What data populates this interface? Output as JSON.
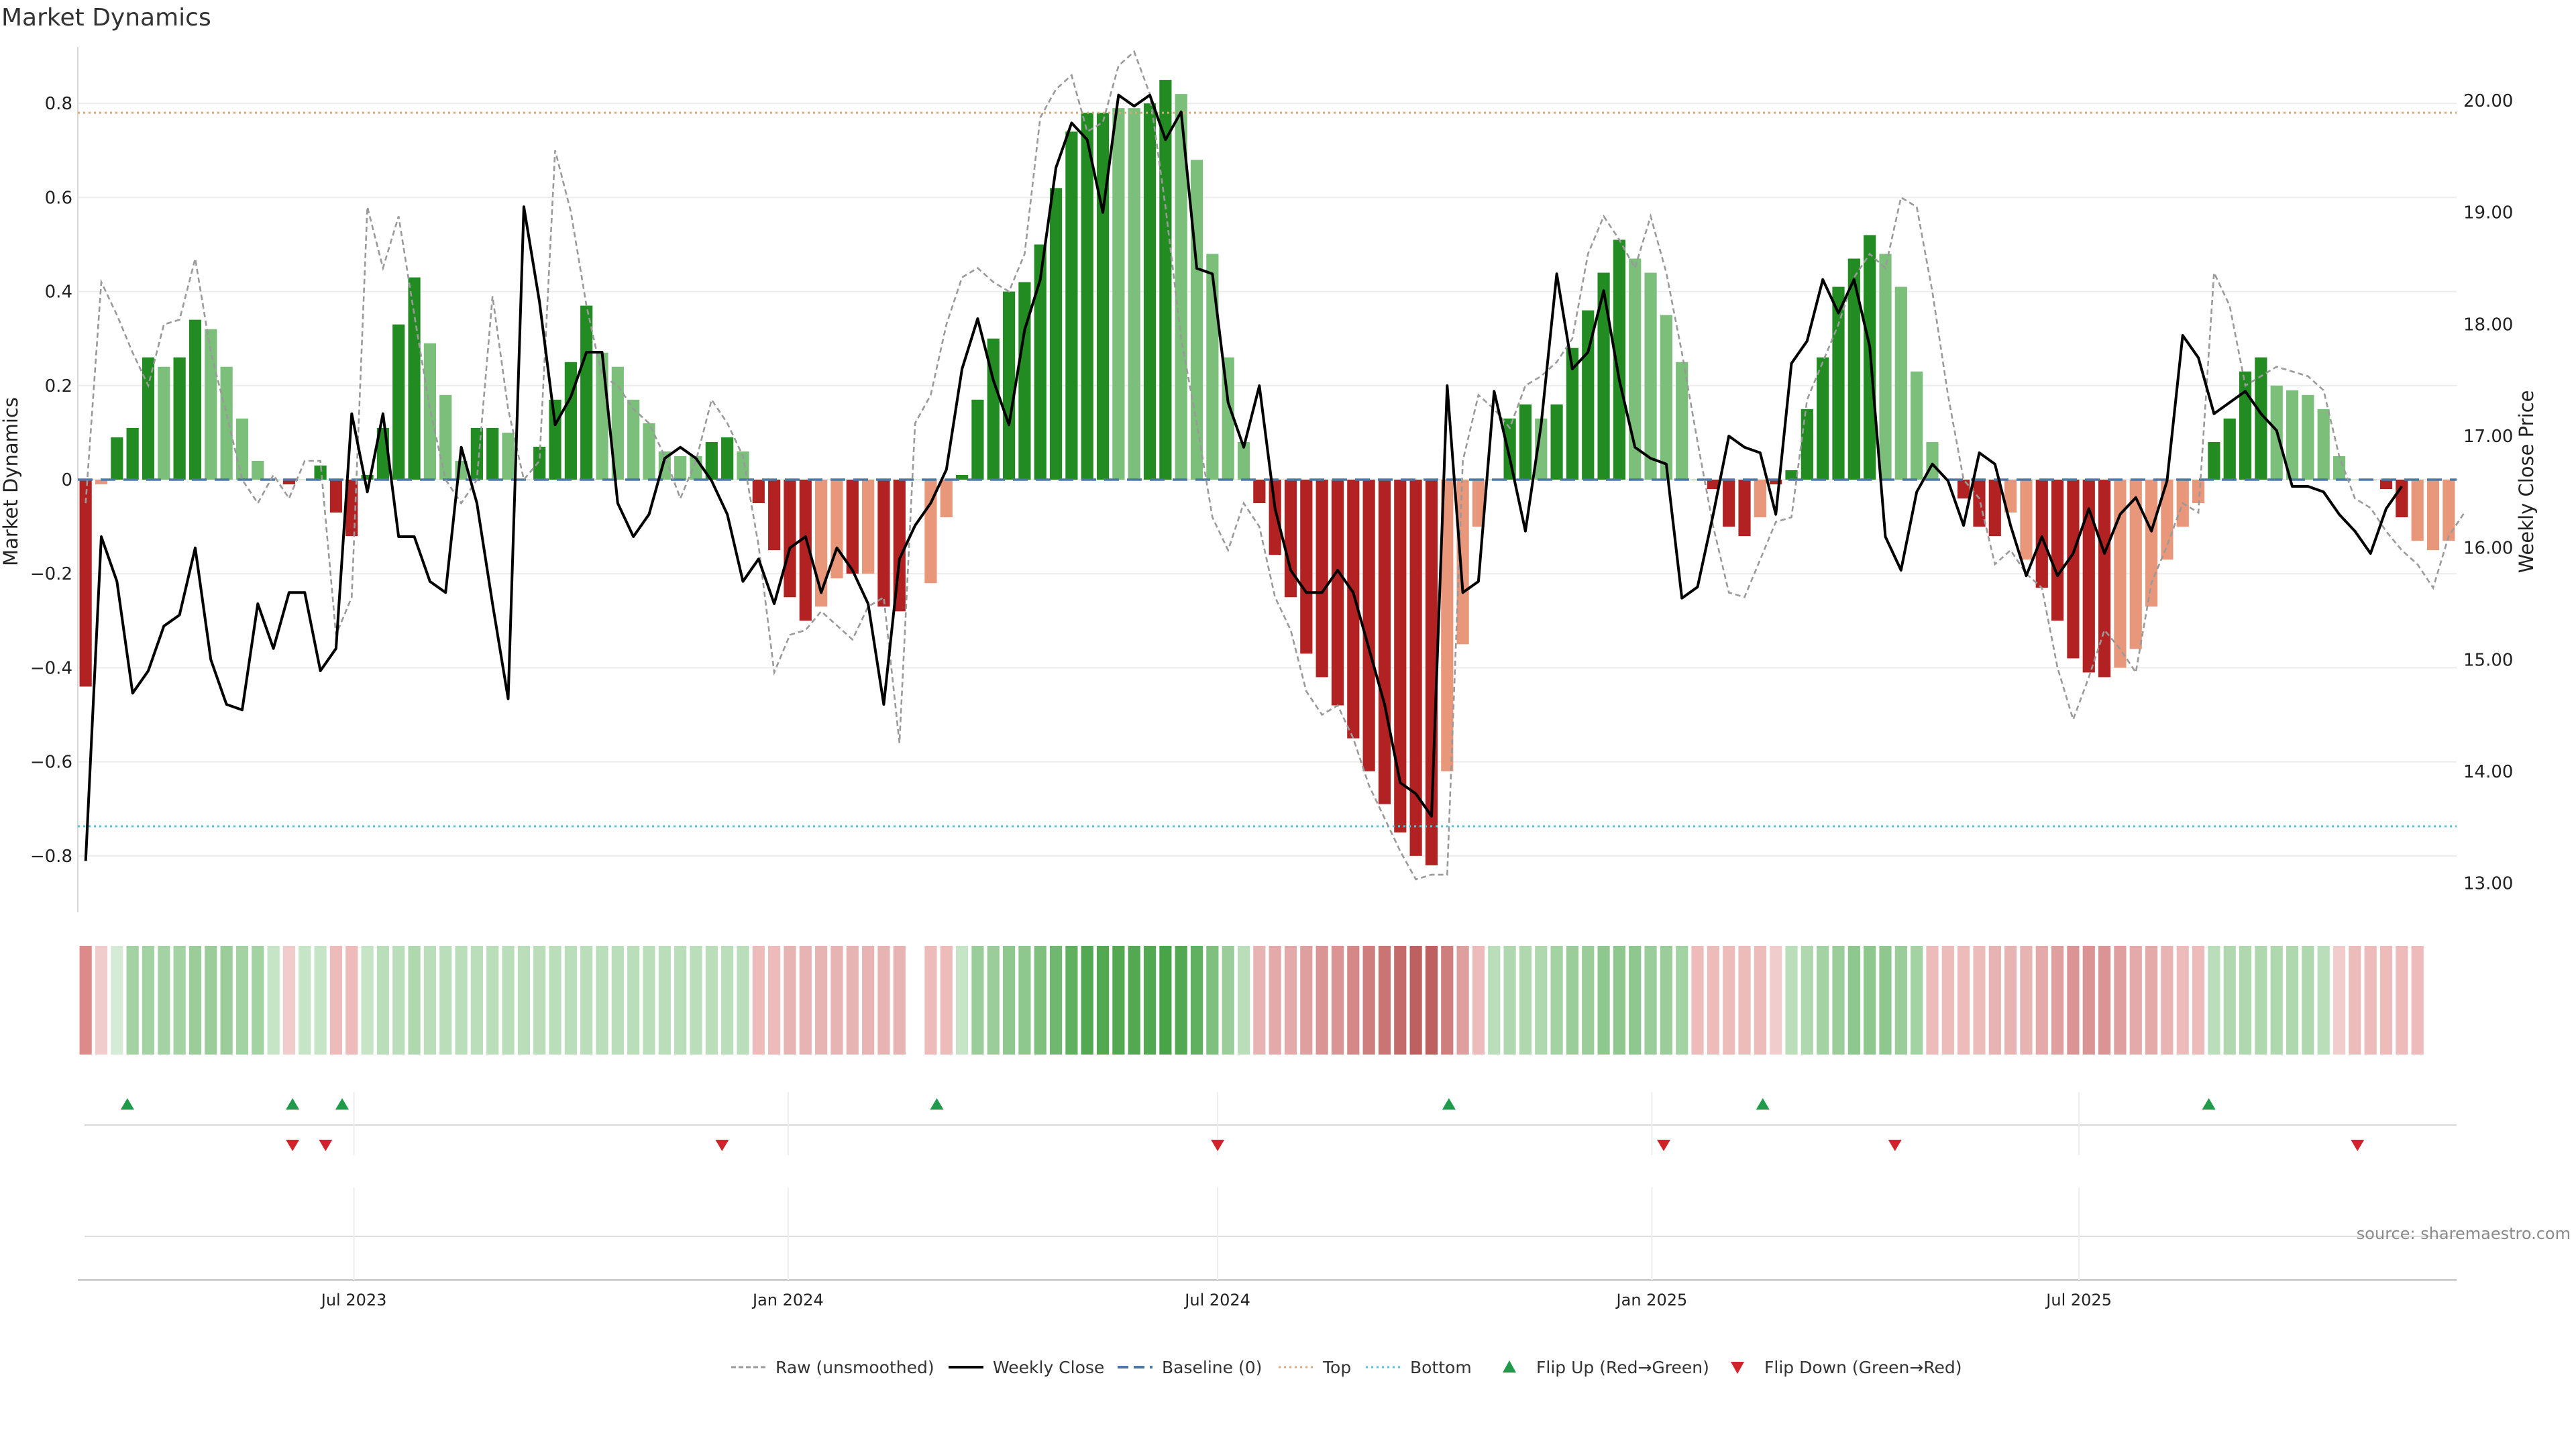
{
  "title": "Market Dynamics",
  "source": "source: sharemaestro.com",
  "colors": {
    "strong_green": "#228b22",
    "light_green": "#7bbf7b",
    "strong_red": "#b22222",
    "light_red": "#e8977a",
    "raw_line": "#9a9a9a",
    "close_line": "#000000",
    "baseline": "#4a78a8",
    "top_line": "#d9a87a",
    "bottom_line": "#55c1e0",
    "flip_up": "#1f9a4a",
    "flip_down": "#d0242a"
  },
  "chart_data": {
    "type": "bar",
    "title": "Market Dynamics",
    "ylabel": "Market Dynamics",
    "y2label": "Weekly Close Price",
    "ylim": [
      -0.92,
      0.92
    ],
    "y2lim": [
      12.74,
      20.48
    ],
    "yticks": [
      "0.8",
      "0.6",
      "0.4",
      "0.2",
      "0",
      "−0.2",
      "−0.4",
      "−0.6",
      "−0.8"
    ],
    "yticks_values": [
      0.8,
      0.6,
      0.4,
      0.2,
      0,
      -0.2,
      -0.4,
      -0.6,
      -0.8
    ],
    "y2ticks": [
      "20.00",
      "19.00",
      "18.00",
      "17.00",
      "16.00",
      "15.00",
      "14.00",
      "13.00"
    ],
    "y2ticks_values": [
      20,
      19,
      18,
      17,
      16,
      15,
      14,
      13
    ],
    "x_range": [
      "2023-03-06",
      "2025-12-08"
    ],
    "xticks": [
      {
        "date": "2023-07-01",
        "label": "Jul 2023"
      },
      {
        "date": "2024-01-01",
        "label": "Jan 2024"
      },
      {
        "date": "2024-07-01",
        "label": "Jul 2024"
      },
      {
        "date": "2025-01-01",
        "label": "Jan 2025"
      },
      {
        "date": "2025-07-01",
        "label": "Jul 2025"
      }
    ],
    "start_date": "2023-03-06",
    "bar_values": [
      -0.44,
      -0.01,
      0.09,
      0.11,
      0.26,
      0.24,
      0.26,
      0.34,
      0.32,
      0.24,
      0.13,
      0.04,
      0.0,
      -0.01,
      0.0,
      0.03,
      -0.07,
      -0.12,
      0.01,
      0.11,
      0.33,
      0.43,
      0.29,
      0.18,
      0.04,
      0.11,
      0.11,
      0.1,
      0.0,
      0.07,
      0.17,
      0.25,
      0.37,
      0.27,
      0.24,
      0.17,
      0.12,
      0.06,
      0.05,
      0.05,
      0.08,
      0.09,
      0.06,
      -0.05,
      -0.15,
      -0.25,
      -0.3,
      -0.27,
      -0.21,
      -0.2,
      -0.2,
      -0.27,
      -0.28,
      0.0,
      -0.22,
      -0.08,
      0.01,
      0.17,
      0.3,
      0.4,
      0.42,
      0.5,
      0.62,
      0.74,
      0.78,
      0.78,
      0.79,
      0.79,
      0.8,
      0.85,
      0.82,
      0.68,
      0.48,
      0.26,
      0.08,
      -0.05,
      -0.16,
      -0.25,
      -0.37,
      -0.42,
      -0.48,
      -0.55,
      -0.62,
      -0.69,
      -0.75,
      -0.8,
      -0.82,
      -0.62,
      -0.35,
      -0.1,
      0.0,
      0.13,
      0.16,
      0.13,
      0.16,
      0.28,
      0.36,
      0.44,
      0.51,
      0.47,
      0.44,
      0.35,
      0.25,
      0.0,
      -0.02,
      -0.1,
      -0.12,
      -0.08,
      -0.01,
      0.02,
      0.15,
      0.26,
      0.41,
      0.47,
      0.52,
      0.48,
      0.41,
      0.23,
      0.08,
      0.0,
      -0.04,
      -0.1,
      -0.12,
      -0.07,
      -0.17,
      -0.23,
      -0.3,
      -0.38,
      -0.41,
      -0.42,
      -0.4,
      -0.36,
      -0.27,
      -0.17,
      -0.1,
      -0.05,
      0.08,
      0.13,
      0.23,
      0.26,
      0.2,
      0.19,
      0.18,
      0.15,
      0.05,
      0.0,
      0.0,
      -0.02,
      -0.08,
      -0.13,
      -0.15,
      -0.13
    ],
    "bar_intensity": [
      "s",
      "l",
      "s",
      "s",
      "s",
      "l",
      "s",
      "s",
      "l",
      "l",
      "l",
      "l",
      "l",
      "s",
      "l",
      "s",
      "s",
      "s",
      "s",
      "s",
      "s",
      "s",
      "l",
      "l",
      "l",
      "s",
      "s",
      "l",
      "l",
      "s",
      "s",
      "s",
      "s",
      "l",
      "l",
      "l",
      "l",
      "l",
      "l",
      "l",
      "s",
      "s",
      "l",
      "s",
      "s",
      "s",
      "s",
      "l",
      "l",
      "s",
      "l",
      "s",
      "s",
      "l",
      "l",
      "l",
      "s",
      "s",
      "s",
      "s",
      "s",
      "s",
      "s",
      "s",
      "s",
      "s",
      "l",
      "l",
      "s",
      "s",
      "l",
      "l",
      "l",
      "l",
      "l",
      "s",
      "s",
      "s",
      "s",
      "s",
      "s",
      "s",
      "s",
      "s",
      "s",
      "s",
      "s",
      "l",
      "l",
      "l",
      "s",
      "s",
      "s",
      "l",
      "s",
      "s",
      "s",
      "s",
      "s",
      "l",
      "l",
      "l",
      "l",
      "s",
      "s",
      "s",
      "s",
      "l",
      "s",
      "s",
      "s",
      "s",
      "s",
      "s",
      "s",
      "l",
      "l",
      "l",
      "l",
      "l",
      "s",
      "s",
      "s",
      "l",
      "l",
      "s",
      "s",
      "s",
      "s",
      "s",
      "l",
      "l",
      "l",
      "l",
      "l",
      "l",
      "s",
      "s",
      "s",
      "s",
      "l",
      "l",
      "l",
      "l",
      "l",
      "l",
      "s",
      "s",
      "s",
      "l"
    ],
    "raw_values": [
      -0.05,
      0.42,
      0.35,
      0.27,
      0.2,
      0.33,
      0.34,
      0.47,
      0.27,
      0.14,
      0.0,
      -0.05,
      0.01,
      -0.04,
      0.04,
      0.04,
      -0.33,
      -0.25,
      0.58,
      0.45,
      0.56,
      0.35,
      0.15,
      0.0,
      -0.05,
      0.0,
      0.39,
      0.15,
      0.0,
      0.04,
      0.7,
      0.57,
      0.37,
      0.22,
      0.2,
      0.15,
      0.12,
      0.05,
      -0.04,
      0.04,
      0.17,
      0.12,
      0.05,
      -0.14,
      -0.41,
      -0.33,
      -0.32,
      -0.28,
      -0.31,
      -0.34,
      -0.27,
      -0.25,
      -0.56,
      0.12,
      0.18,
      0.33,
      0.43,
      0.45,
      0.42,
      0.4,
      0.48,
      0.77,
      0.83,
      0.86,
      0.74,
      0.76,
      0.88,
      0.91,
      0.82,
      0.58,
      0.3,
      0.12,
      -0.08,
      -0.15,
      -0.05,
      -0.1,
      -0.25,
      -0.32,
      -0.45,
      -0.5,
      -0.48,
      -0.55,
      -0.65,
      -0.72,
      -0.79,
      -0.85,
      -0.84,
      -0.84,
      0.04,
      0.18,
      0.15,
      0.11,
      0.2,
      0.22,
      0.25,
      0.3,
      0.48,
      0.56,
      0.51,
      0.45,
      0.56,
      0.44,
      0.27,
      0.08,
      -0.1,
      -0.24,
      -0.25,
      -0.17,
      -0.09,
      -0.08,
      0.17,
      0.25,
      0.33,
      0.43,
      0.48,
      0.45,
      0.6,
      0.58,
      0.4,
      0.18,
      0.0,
      -0.04,
      -0.18,
      -0.15,
      -0.2,
      -0.23,
      -0.4,
      -0.51,
      -0.42,
      -0.32,
      -0.36,
      -0.41,
      -0.22,
      -0.14,
      -0.05,
      -0.07,
      0.44,
      0.37,
      0.2,
      0.22,
      0.24,
      0.23,
      0.22,
      0.19,
      0.05,
      -0.04,
      -0.06,
      -0.11,
      -0.15,
      -0.18,
      -0.23,
      -0.12,
      -0.07
    ],
    "close_values": [
      13.2,
      16.1,
      15.7,
      14.7,
      14.9,
      15.3,
      15.4,
      16.0,
      15.0,
      14.6,
      14.55,
      15.5,
      15.1,
      15.6,
      15.6,
      14.9,
      15.1,
      17.2,
      16.5,
      17.2,
      16.1,
      16.1,
      15.7,
      15.6,
      16.9,
      16.4,
      15.5,
      14.65,
      19.05,
      18.2,
      17.1,
      17.35,
      17.75,
      17.75,
      16.4,
      16.1,
      16.3,
      16.8,
      16.9,
      16.8,
      16.6,
      16.3,
      15.7,
      15.9,
      15.5,
      16.0,
      16.1,
      15.6,
      16.0,
      15.8,
      15.5,
      14.6,
      15.9,
      16.2,
      16.4,
      16.7,
      17.6,
      18.05,
      17.5,
      17.1,
      17.95,
      18.4,
      19.4,
      19.8,
      19.65,
      19.0,
      20.05,
      19.95,
      20.05,
      19.65,
      19.9,
      18.5,
      18.45,
      17.3,
      16.9,
      17.45,
      16.35,
      15.8,
      15.6,
      15.6,
      15.8,
      15.6,
      15.1,
      14.6,
      13.9,
      13.8,
      13.6,
      17.45,
      15.6,
      15.7,
      17.4,
      16.8,
      16.15,
      17.1,
      18.45,
      17.6,
      17.75,
      18.3,
      17.5,
      16.9,
      16.8,
      16.75,
      15.55,
      15.65,
      16.3,
      17.0,
      16.9,
      16.85,
      16.3,
      17.65,
      17.85,
      18.4,
      18.1,
      18.4,
      17.8,
      16.1,
      15.8,
      16.5,
      16.75,
      16.6,
      16.2,
      16.85,
      16.75,
      16.2,
      15.75,
      16.1,
      15.75,
      15.95,
      16.35,
      15.95,
      16.3,
      16.45,
      16.15,
      16.6,
      17.9,
      17.7,
      17.2,
      17.3,
      17.4,
      17.2,
      17.05,
      16.55,
      16.55,
      16.5,
      16.3,
      16.15,
      15.95,
      16.35,
      16.55
    ],
    "background_bands": [
      {
        "value": 0.8,
        "color": "#dc8a8a"
      },
      {
        "value": 0.2,
        "color": "#f0cccc"
      },
      {
        "value": 0.2,
        "color": "#d6ebd6"
      },
      {
        "value": 0.45,
        "color": "#a3d3a3"
      },
      {
        "value": 0.45,
        "color": "#a3d3a3"
      },
      {
        "value": 0.45,
        "color": "#a3d3a3"
      },
      {
        "value": 0.45,
        "color": "#a3d3a3"
      },
      {
        "value": 0.5,
        "color": "#9acd9a"
      },
      {
        "value": 0.5,
        "color": "#9acd9a"
      },
      {
        "value": 0.5,
        "color": "#9acd9a"
      },
      {
        "value": 0.45,
        "color": "#a3d3a3"
      },
      {
        "value": 0.45,
        "color": "#a3d3a3"
      },
      {
        "value": 0.3,
        "color": "#c6e4c6"
      },
      {
        "value": 0.2,
        "color": "#f0cccc"
      },
      {
        "value": 0.3,
        "color": "#c6e4c6"
      },
      {
        "value": 0.3,
        "color": "#c6e4c6"
      },
      {
        "value": 0.3,
        "color": "#eebbbb"
      },
      {
        "value": 0.3,
        "color": "#eebbbb"
      },
      {
        "value": 0.3,
        "color": "#c6e4c6"
      },
      {
        "value": 0.35,
        "color": "#b9deb9"
      },
      {
        "value": 0.35,
        "color": "#b9deb9"
      },
      {
        "value": 0.4,
        "color": "#afd8af"
      },
      {
        "value": 0.35,
        "color": "#b9deb9"
      },
      {
        "value": 0.35,
        "color": "#b9deb9"
      },
      {
        "value": 0.35,
        "color": "#b9deb9"
      },
      {
        "value": 0.35,
        "color": "#b9deb9"
      },
      {
        "value": 0.35,
        "color": "#b9deb9"
      },
      {
        "value": 0.35,
        "color": "#b9deb9"
      },
      {
        "value": 0.35,
        "color": "#b9deb9"
      },
      {
        "value": 0.35,
        "color": "#b9deb9"
      },
      {
        "value": 0.35,
        "color": "#b9deb9"
      },
      {
        "value": 0.35,
        "color": "#b9deb9"
      },
      {
        "value": 0.35,
        "color": "#b9deb9"
      },
      {
        "value": 0.35,
        "color": "#b9deb9"
      },
      {
        "value": 0.35,
        "color": "#b9deb9"
      },
      {
        "value": 0.35,
        "color": "#b9deb9"
      },
      {
        "value": 0.35,
        "color": "#b9deb9"
      },
      {
        "value": 0.35,
        "color": "#b9deb9"
      },
      {
        "value": 0.35,
        "color": "#b9deb9"
      },
      {
        "value": 0.35,
        "color": "#b9deb9"
      },
      {
        "value": 0.35,
        "color": "#b9deb9"
      },
      {
        "value": 0.35,
        "color": "#b9deb9"
      },
      {
        "value": 0.35,
        "color": "#b9deb9"
      },
      {
        "value": 0.3,
        "color": "#eebbbb"
      },
      {
        "value": 0.3,
        "color": "#eebbbb"
      },
      {
        "value": 0.35,
        "color": "#e8b3b3"
      },
      {
        "value": 0.35,
        "color": "#e8b3b3"
      },
      {
        "value": 0.35,
        "color": "#e8b3b3"
      },
      {
        "value": 0.35,
        "color": "#e8b3b3"
      },
      {
        "value": 0.35,
        "color": "#e8b3b3"
      },
      {
        "value": 0.35,
        "color": "#e8b3b3"
      },
      {
        "value": 0.35,
        "color": "#e8b3b3"
      },
      {
        "value": 0.35,
        "color": "#e8b3b3"
      },
      {
        "value": 0,
        "color": "#ffffff"
      },
      {
        "value": 0.3,
        "color": "#eebbbb"
      },
      {
        "value": 0.3,
        "color": "#eebbbb"
      },
      {
        "value": 0.3,
        "color": "#c6e4c6"
      },
      {
        "value": 0.5,
        "color": "#9acd9a"
      },
      {
        "value": 0.5,
        "color": "#9acd9a"
      },
      {
        "value": 0.55,
        "color": "#8ec88e"
      },
      {
        "value": 0.55,
        "color": "#8ec88e"
      },
      {
        "value": 0.6,
        "color": "#7fc07f"
      },
      {
        "value": 0.65,
        "color": "#6fb86f"
      },
      {
        "value": 0.7,
        "color": "#5fb05f"
      },
      {
        "value": 0.75,
        "color": "#52a952"
      },
      {
        "value": 0.75,
        "color": "#52a952"
      },
      {
        "value": 0.75,
        "color": "#52a952"
      },
      {
        "value": 0.75,
        "color": "#52a952"
      },
      {
        "value": 0.75,
        "color": "#52a952"
      },
      {
        "value": 0.8,
        "color": "#49a449"
      },
      {
        "value": 0.75,
        "color": "#52a952"
      },
      {
        "value": 0.7,
        "color": "#5fb05f"
      },
      {
        "value": 0.6,
        "color": "#7fc07f"
      },
      {
        "value": 0.5,
        "color": "#9acd9a"
      },
      {
        "value": 0.35,
        "color": "#b9deb9"
      },
      {
        "value": 0.35,
        "color": "#e8b3b3"
      },
      {
        "value": 0.4,
        "color": "#e4a9a9"
      },
      {
        "value": 0.4,
        "color": "#e4a9a9"
      },
      {
        "value": 0.45,
        "color": "#df9f9f"
      },
      {
        "value": 0.5,
        "color": "#da9494"
      },
      {
        "value": 0.5,
        "color": "#da9494"
      },
      {
        "value": 0.55,
        "color": "#d48888"
      },
      {
        "value": 0.6,
        "color": "#cf7e7e"
      },
      {
        "value": 0.65,
        "color": "#ca7474"
      },
      {
        "value": 0.7,
        "color": "#c46a6a"
      },
      {
        "value": 0.75,
        "color": "#bf6060"
      },
      {
        "value": 0.75,
        "color": "#bf6060"
      },
      {
        "value": 0.6,
        "color": "#cf7e7e"
      },
      {
        "value": 0.45,
        "color": "#df9f9f"
      },
      {
        "value": 0.3,
        "color": "#eebbbb"
      },
      {
        "value": 0.35,
        "color": "#b9deb9"
      },
      {
        "value": 0.4,
        "color": "#afd8af"
      },
      {
        "value": 0.4,
        "color": "#afd8af"
      },
      {
        "value": 0.4,
        "color": "#afd8af"
      },
      {
        "value": 0.45,
        "color": "#a3d3a3"
      },
      {
        "value": 0.5,
        "color": "#9acd9a"
      },
      {
        "value": 0.5,
        "color": "#9acd9a"
      },
      {
        "value": 0.55,
        "color": "#8ec88e"
      },
      {
        "value": 0.55,
        "color": "#8ec88e"
      },
      {
        "value": 0.55,
        "color": "#8ec88e"
      },
      {
        "value": 0.5,
        "color": "#9acd9a"
      },
      {
        "value": 0.5,
        "color": "#9acd9a"
      },
      {
        "value": 0.45,
        "color": "#a3d3a3"
      },
      {
        "value": 0.3,
        "color": "#eebbbb"
      },
      {
        "value": 0.3,
        "color": "#eebbbb"
      },
      {
        "value": 0.3,
        "color": "#eebbbb"
      },
      {
        "value": 0.3,
        "color": "#eebbbb"
      },
      {
        "value": 0.3,
        "color": "#eebbbb"
      },
      {
        "value": 0.2,
        "color": "#f0cccc"
      },
      {
        "value": 0.35,
        "color": "#b9deb9"
      },
      {
        "value": 0.4,
        "color": "#afd8af"
      },
      {
        "value": 0.45,
        "color": "#a3d3a3"
      },
      {
        "value": 0.5,
        "color": "#9acd9a"
      },
      {
        "value": 0.55,
        "color": "#8ec88e"
      },
      {
        "value": 0.55,
        "color": "#8ec88e"
      },
      {
        "value": 0.55,
        "color": "#8ec88e"
      },
      {
        "value": 0.5,
        "color": "#9acd9a"
      },
      {
        "value": 0.45,
        "color": "#a3d3a3"
      },
      {
        "value": 0.3,
        "color": "#eebbbb"
      },
      {
        "value": 0.3,
        "color": "#eebbbb"
      },
      {
        "value": 0.3,
        "color": "#eebbbb"
      },
      {
        "value": 0.3,
        "color": "#eebbbb"
      },
      {
        "value": 0.35,
        "color": "#e8b3b3"
      },
      {
        "value": 0.35,
        "color": "#e8b3b3"
      },
      {
        "value": 0.35,
        "color": "#e8b3b3"
      },
      {
        "value": 0.4,
        "color": "#e4a9a9"
      },
      {
        "value": 0.45,
        "color": "#df9f9f"
      },
      {
        "value": 0.5,
        "color": "#da9494"
      },
      {
        "value": 0.5,
        "color": "#da9494"
      },
      {
        "value": 0.5,
        "color": "#da9494"
      },
      {
        "value": 0.45,
        "color": "#df9f9f"
      },
      {
        "value": 0.4,
        "color": "#e4a9a9"
      },
      {
        "value": 0.4,
        "color": "#e4a9a9"
      },
      {
        "value": 0.35,
        "color": "#e8b3b3"
      },
      {
        "value": 0.3,
        "color": "#eebbbb"
      },
      {
        "value": 0.3,
        "color": "#eebbbb"
      },
      {
        "value": 0.35,
        "color": "#b9deb9"
      },
      {
        "value": 0.4,
        "color": "#afd8af"
      },
      {
        "value": 0.4,
        "color": "#afd8af"
      },
      {
        "value": 0.4,
        "color": "#afd8af"
      },
      {
        "value": 0.4,
        "color": "#afd8af"
      },
      {
        "value": 0.4,
        "color": "#afd8af"
      },
      {
        "value": 0.4,
        "color": "#afd8af"
      },
      {
        "value": 0.35,
        "color": "#b9deb9"
      },
      {
        "value": 0.2,
        "color": "#f0cccc"
      },
      {
        "value": 0.3,
        "color": "#eebbbb"
      },
      {
        "value": 0.3,
        "color": "#eebbbb"
      },
      {
        "value": 0.3,
        "color": "#eebbbb"
      },
      {
        "value": 0.3,
        "color": "#eebbbb"
      },
      {
        "value": 0.3,
        "color": "#eebbbb"
      }
    ],
    "top_level": 0.78,
    "bottom_level": -0.737,
    "baseline_level": 0,
    "flip_up_dates": [
      "2023-03-27",
      "2023-06-05",
      "2023-06-26",
      "2024-03-04",
      "2024-10-07",
      "2025-02-17",
      "2025-08-25"
    ],
    "flip_down_dates": [
      "2023-06-05",
      "2023-06-19",
      "2023-12-04",
      "2024-07-01",
      "2025-01-06",
      "2025-04-14",
      "2025-10-27"
    ],
    "legend": {
      "raw": "Raw (unsmoothed)",
      "close": "Weekly Close",
      "baseline": "Baseline (0)",
      "top": "Top",
      "bottom": "Bottom",
      "flip_up": "Flip Up (Red→Green)",
      "flip_down": "Flip Down (Green→Red)"
    }
  }
}
